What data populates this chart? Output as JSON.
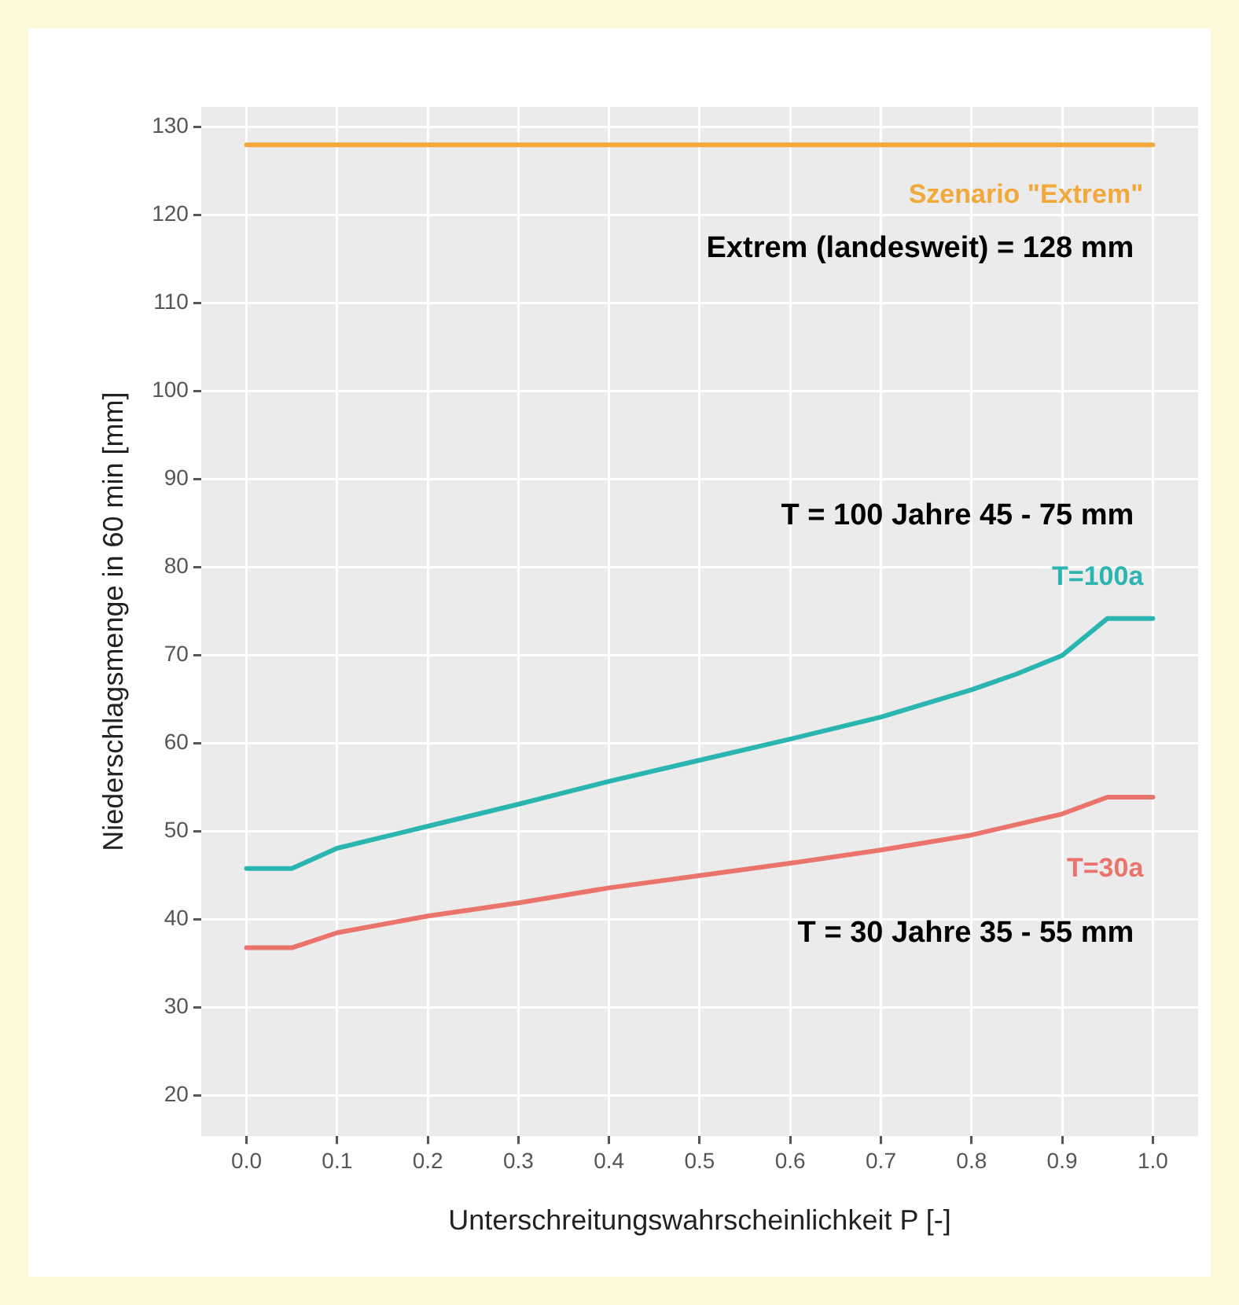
{
  "chart_data": {
    "type": "line",
    "xlabel": "Unterschreitungswahrscheinlichkeit P [-]",
    "ylabel": "Niederschlagsmenge in 60 min [mm]",
    "xlim": [
      -0.05,
      1.05
    ],
    "xticks": [
      {
        "value": 0,
        "label": "0.0"
      },
      0.1,
      0.2,
      0.3,
      0.4,
      0.5,
      0.6,
      0.7,
      0.8,
      0.9,
      {
        "value": 1,
        "label": "1.0"
      }
    ],
    "ylim": [
      15.4,
      132.3
    ],
    "yticks": [
      20,
      30,
      40,
      50,
      60,
      70,
      80,
      90,
      100,
      110,
      120,
      130
    ],
    "grid": true,
    "legend": false,
    "marker": "none",
    "line_style": "solid",
    "series": [
      {
        "name": "Szenario \"Extrem\"",
        "color": "#f2a93b",
        "x": [
          0,
          1
        ],
        "values": [
          128,
          128
        ]
      },
      {
        "name": "T=100a",
        "color": "#2bb5b0",
        "x": [
          0,
          0.05,
          0.1,
          0.2,
          0.3,
          0.4,
          0.5,
          0.6,
          0.7,
          0.8,
          0.85,
          0.9,
          0.95,
          1
        ],
        "values": [
          45.8,
          45.8,
          48.1,
          50.6,
          53.1,
          55.7,
          58.1,
          60.5,
          63.0,
          66.1,
          67.9,
          70.0,
          74.2,
          74.2
        ]
      },
      {
        "name": "T=30a",
        "color": "#ea736c",
        "x": [
          0,
          0.05,
          0.1,
          0.2,
          0.3,
          0.4,
          0.5,
          0.6,
          0.7,
          0.8,
          0.9,
          0.95,
          1
        ],
        "values": [
          36.8,
          36.8,
          38.5,
          40.4,
          41.9,
          43.6,
          45.0,
          46.4,
          47.9,
          49.6,
          52.0,
          53.9,
          53.9
        ]
      }
    ],
    "annotations": [
      "Extrem (landesweit) = 128 mm",
      "T = 100 Jahre 45 - 75 mm",
      "T = 30 Jahre 35 - 55 mm"
    ]
  }
}
